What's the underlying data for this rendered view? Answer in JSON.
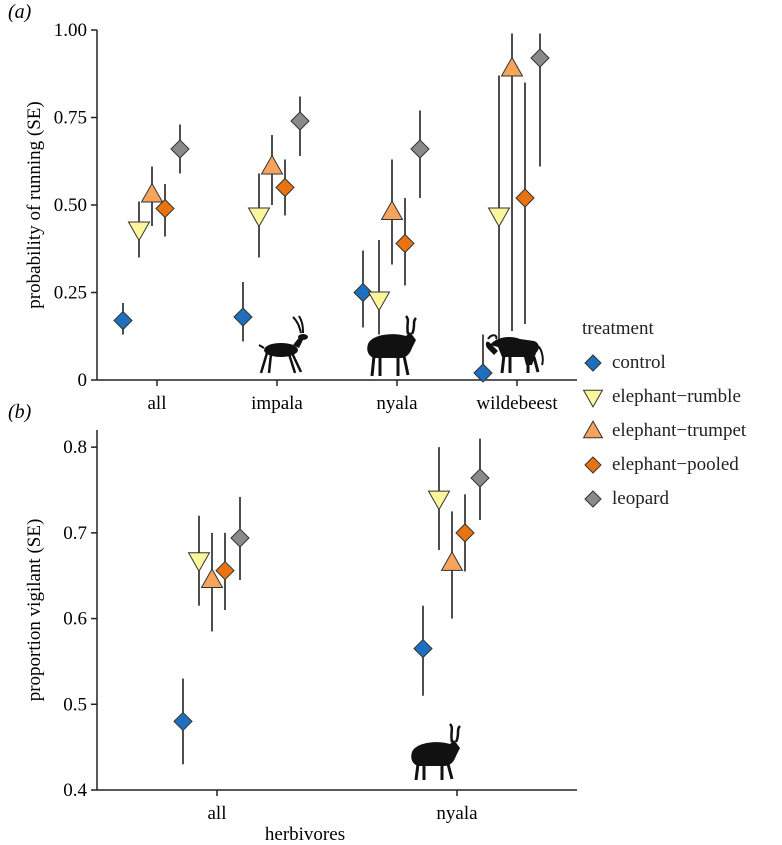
{
  "chart_data": [
    {
      "type": "scatter",
      "panel_label": "(a)",
      "ylabel": "probability of running (SE)",
      "xlabel": "",
      "categories": [
        "all",
        "impala",
        "nyala",
        "wildebeest"
      ],
      "ylim": [
        0,
        1
      ],
      "yticks": [
        "0",
        "0.25",
        "0.50",
        "0.75",
        "1.00"
      ],
      "ytick_values": [
        0,
        0.25,
        0.5,
        0.75,
        1.0
      ],
      "series": [
        {
          "name": "control",
          "values": [
            0.17,
            0.18,
            0.25,
            0.02
          ],
          "lower": [
            0.13,
            0.11,
            0.15,
            0.0
          ],
          "upper": [
            0.22,
            0.28,
            0.37,
            0.13
          ]
        },
        {
          "name": "elephant−rumble",
          "values": [
            0.43,
            0.47,
            0.23,
            0.47
          ],
          "lower": [
            0.35,
            0.35,
            0.13,
            0.1
          ],
          "upper": [
            0.51,
            0.59,
            0.4,
            0.87
          ]
        },
        {
          "name": "elephant−trumpet",
          "values": [
            0.53,
            0.61,
            0.48,
            0.89
          ],
          "lower": [
            0.44,
            0.5,
            0.33,
            0.14
          ],
          "upper": [
            0.61,
            0.7,
            0.63,
            0.99
          ]
        },
        {
          "name": "elephant−pooled",
          "values": [
            0.49,
            0.55,
            0.39,
            0.52
          ],
          "lower": [
            0.41,
            0.47,
            0.27,
            0.16
          ],
          "upper": [
            0.56,
            0.63,
            0.52,
            0.85
          ]
        },
        {
          "name": "leopard",
          "values": [
            0.66,
            0.74,
            0.66,
            0.92
          ],
          "lower": [
            0.59,
            0.64,
            0.52,
            0.61
          ],
          "upper": [
            0.73,
            0.81,
            0.77,
            0.99
          ]
        }
      ]
    },
    {
      "type": "scatter",
      "panel_label": "(b)",
      "ylabel": "proportion vigilant (SE)",
      "xlabel": "herbivores",
      "categories": [
        "all",
        "nyala"
      ],
      "ylim": [
        0.4,
        0.82
      ],
      "yticks": [
        "0.4",
        "0.5",
        "0.6",
        "0.7",
        "0.8"
      ],
      "ytick_values": [
        0.4,
        0.5,
        0.6,
        0.7,
        0.8
      ],
      "series": [
        {
          "name": "control",
          "values": [
            0.48,
            0.565
          ],
          "lower": [
            0.43,
            0.51
          ],
          "upper": [
            0.53,
            0.615
          ]
        },
        {
          "name": "elephant−rumble",
          "values": [
            0.668,
            0.74
          ],
          "lower": [
            0.615,
            0.68
          ],
          "upper": [
            0.72,
            0.8
          ]
        },
        {
          "name": "elephant−trumpet",
          "values": [
            0.645,
            0.665
          ],
          "lower": [
            0.585,
            0.6
          ],
          "upper": [
            0.7,
            0.725
          ]
        },
        {
          "name": "elephant−pooled",
          "values": [
            0.656,
            0.7
          ],
          "lower": [
            0.61,
            0.655
          ],
          "upper": [
            0.7,
            0.745
          ]
        },
        {
          "name": "leopard",
          "values": [
            0.694,
            0.764
          ],
          "lower": [
            0.645,
            0.715
          ],
          "upper": [
            0.742,
            0.81
          ]
        }
      ]
    }
  ],
  "legend": {
    "title": "treatment",
    "items": [
      {
        "label": "control",
        "marker": "diamond",
        "color": "#1f6fbf"
      },
      {
        "label": "elephant−rumble",
        "marker": "triangle-down",
        "color": "#fbf59b"
      },
      {
        "label": "elephant−trumpet",
        "marker": "triangle-up",
        "color": "#f7a35c"
      },
      {
        "label": "elephant−pooled",
        "marker": "diamond",
        "color": "#e8730f"
      },
      {
        "label": "leopard",
        "marker": "diamond",
        "color": "#8a8a8a"
      }
    ]
  },
  "icons": [
    "impala-silhouette-icon",
    "nyala-silhouette-icon",
    "wildebeest-silhouette-icon"
  ]
}
